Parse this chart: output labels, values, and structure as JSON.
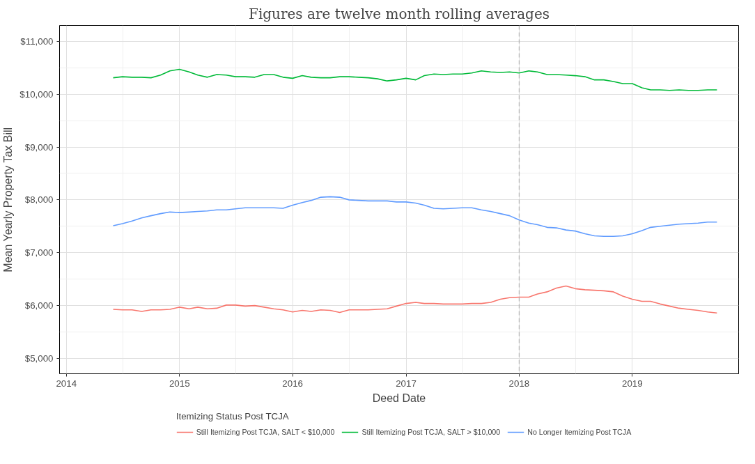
{
  "chart_data": {
    "type": "line",
    "title": "Figures are twelve month rolling averages",
    "xlabel": "Deed Date",
    "ylabel": "Mean Yearly Property Tax Bill",
    "legend_title": "Itemizing Status Post TCJA",
    "x": [
      "2014-06",
      "2014-07",
      "2014-08",
      "2014-09",
      "2014-10",
      "2014-11",
      "2014-12",
      "2015-01",
      "2015-02",
      "2015-03",
      "2015-04",
      "2015-05",
      "2015-06",
      "2015-07",
      "2015-08",
      "2015-09",
      "2015-10",
      "2015-11",
      "2015-12",
      "2016-01",
      "2016-02",
      "2016-03",
      "2016-04",
      "2016-05",
      "2016-06",
      "2016-07",
      "2016-08",
      "2016-09",
      "2016-10",
      "2016-11",
      "2016-12",
      "2017-01",
      "2017-02",
      "2017-03",
      "2017-04",
      "2017-05",
      "2017-06",
      "2017-07",
      "2017-08",
      "2017-09",
      "2017-10",
      "2017-11",
      "2017-12",
      "2018-01",
      "2018-02",
      "2018-03",
      "2018-04",
      "2018-05",
      "2018-06",
      "2018-07",
      "2018-08",
      "2018-09",
      "2018-10",
      "2018-11",
      "2018-12",
      "2019-01",
      "2019-02",
      "2019-03",
      "2019-04",
      "2019-05",
      "2019-06",
      "2019-07",
      "2019-08",
      "2019-09",
      "2019-10"
    ],
    "series": [
      {
        "name": "Still Itemizing Post TCJA, SALT < $10,000",
        "color": "#f8766d",
        "values": [
          5930,
          5920,
          5920,
          5890,
          5920,
          5920,
          5930,
          5970,
          5940,
          5970,
          5940,
          5950,
          6010,
          6010,
          5990,
          6000,
          5970,
          5940,
          5920,
          5880,
          5910,
          5890,
          5920,
          5910,
          5870,
          5920,
          5920,
          5920,
          5930,
          5940,
          5990,
          6040,
          6060,
          6040,
          6040,
          6030,
          6030,
          6030,
          6040,
          6040,
          6060,
          6120,
          6150,
          6160,
          6160,
          6220,
          6260,
          6330,
          6370,
          6320,
          6300,
          6290,
          6280,
          6260,
          6180,
          6120,
          6080,
          6080,
          6030,
          5990,
          5950,
          5930,
          5910,
          5880,
          5860
        ]
      },
      {
        "name": "Still Itemizing Post TCJA, SALT > $10,000",
        "color": "#00ba38",
        "values": [
          10310,
          10330,
          10320,
          10320,
          10310,
          10360,
          10440,
          10470,
          10420,
          10360,
          10320,
          10370,
          10360,
          10330,
          10330,
          10320,
          10370,
          10370,
          10320,
          10300,
          10350,
          10320,
          10310,
          10310,
          10330,
          10330,
          10320,
          10310,
          10290,
          10250,
          10270,
          10300,
          10270,
          10350,
          10380,
          10370,
          10380,
          10380,
          10400,
          10440,
          10420,
          10410,
          10420,
          10400,
          10440,
          10420,
          10370,
          10370,
          10360,
          10350,
          10330,
          10270,
          10270,
          10240,
          10200,
          10200,
          10120,
          10080,
          10080,
          10070,
          10080,
          10070,
          10070,
          10080,
          10080
        ]
      },
      {
        "name": "No Longer Itemizing Post TCJA",
        "color": "#619cff",
        "values": [
          7510,
          7550,
          7600,
          7660,
          7700,
          7740,
          7770,
          7760,
          7770,
          7780,
          7790,
          7810,
          7810,
          7830,
          7850,
          7850,
          7850,
          7850,
          7840,
          7900,
          7950,
          7990,
          8050,
          8060,
          8050,
          8000,
          7990,
          7980,
          7980,
          7980,
          7960,
          7960,
          7940,
          7900,
          7840,
          7830,
          7840,
          7850,
          7850,
          7810,
          7780,
          7740,
          7700,
          7620,
          7560,
          7530,
          7480,
          7470,
          7430,
          7410,
          7360,
          7320,
          7310,
          7310,
          7320,
          7360,
          7420,
          7480,
          7500,
          7520,
          7540,
          7550,
          7560,
          7580,
          7580
        ]
      }
    ],
    "xlim": [
      "2013-12-10",
      "2019-12-10"
    ],
    "xticks": [
      {
        "value": "2014-01-01",
        "label": "2014"
      },
      {
        "value": "2015-01-01",
        "label": "2015"
      },
      {
        "value": "2016-01-01",
        "label": "2016"
      },
      {
        "value": "2017-01-01",
        "label": "2017"
      },
      {
        "value": "2018-01-01",
        "label": "2018"
      },
      {
        "value": "2019-01-01",
        "label": "2019"
      }
    ],
    "ylim": [
      4710,
      11300
    ],
    "yticks": [
      {
        "value": 5000,
        "label": "$5,000"
      },
      {
        "value": 6000,
        "label": "$6,000"
      },
      {
        "value": 7000,
        "label": "$7,000"
      },
      {
        "value": 8000,
        "label": "$8,000"
      },
      {
        "value": 9000,
        "label": "$9,000"
      },
      {
        "value": 10000,
        "label": "$10,000"
      },
      {
        "value": 11000,
        "label": "$11,000"
      }
    ],
    "ref_lines": [
      {
        "axis": "x",
        "value": "2018-01-01",
        "color": "#b3b3b3",
        "line_style": "dashed"
      }
    ],
    "grid": true,
    "legend": "bottom",
    "marker": "none",
    "line_style": "solid"
  }
}
